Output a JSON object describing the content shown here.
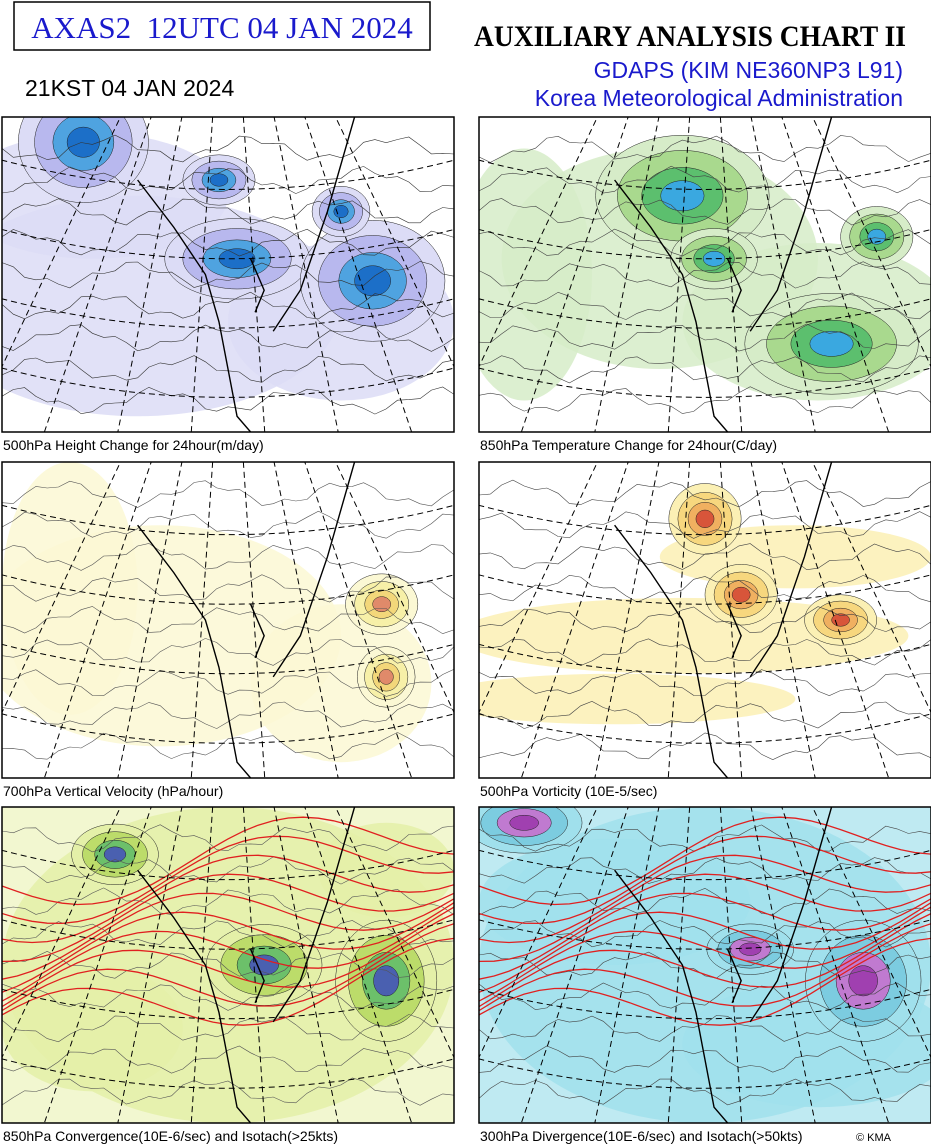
{
  "header": {
    "code": "AXAS2  12UTC 04 JAN 2024",
    "title": "AUXILIARY ANALYSIS CHART II",
    "local_time": "21KST 04 JAN 2024",
    "model": "GDAPS (KIM NE360NP3 L91)",
    "agency": "Korea Meteorological Administration"
  },
  "panels": [
    {
      "caption": "500hPa Height Change for 24hour(m/day)"
    },
    {
      "caption": "850hPa Temperature Change for 24hour(C/day)"
    },
    {
      "caption": "700hPa Vertical Velocity (hPa/hour)"
    },
    {
      "caption": "500hPa Vorticity (10E-5/sec)"
    },
    {
      "caption": "850hPa Convergence(10E-6/sec) and Isotach(>25kts)"
    },
    {
      "caption": "300hPa Divergence(10E-6/sec) and Isotach(>50kts)"
    }
  ],
  "copyright": "© KMA"
}
